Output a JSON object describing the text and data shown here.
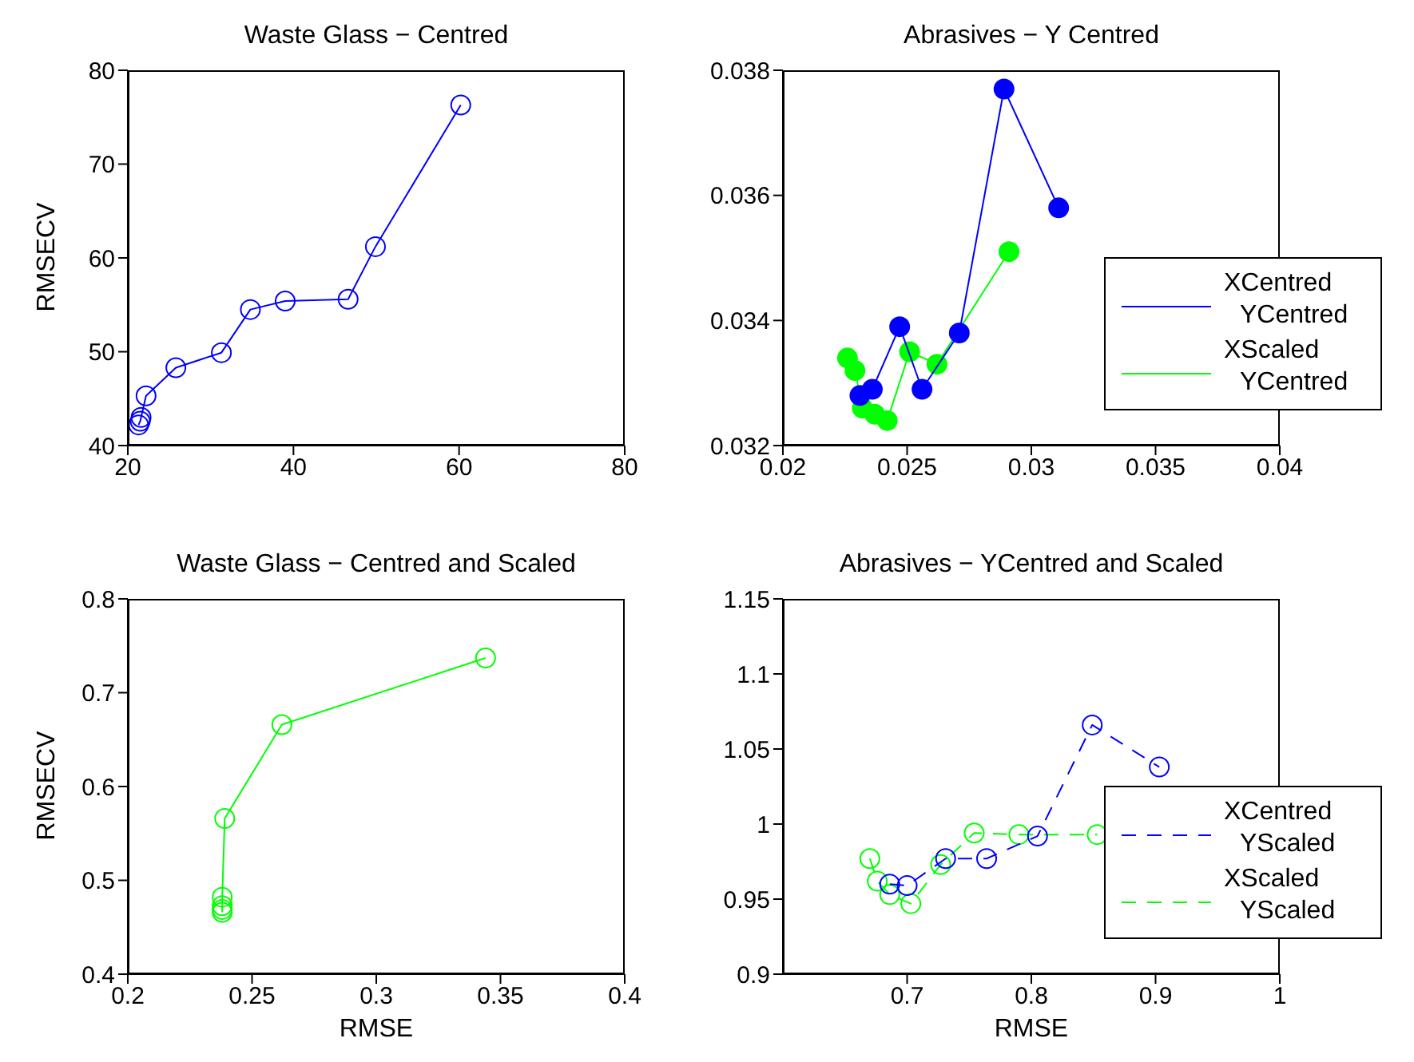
{
  "chart_data": [
    {
      "type": "line",
      "title": "Waste Glass − Centred",
      "ylabel": "RMSECV",
      "marker": "circle",
      "xlim": [
        20,
        80
      ],
      "xticks": [
        20,
        40,
        60,
        80
      ],
      "ylim": [
        40,
        80
      ],
      "yticks": [
        40,
        50,
        60,
        70,
        80
      ],
      "legend": false,
      "series": [
        {
          "color": "#0000ff",
          "x": [
            21.3,
            21.5,
            21.6,
            22.2,
            25.8,
            31.3,
            34.8,
            39,
            46.6,
            49.9,
            60.2
          ],
          "values": [
            42.2,
            42.6,
            43.0,
            45.3,
            48.3,
            49.9,
            54.5,
            55.4,
            55.6,
            61.2,
            76.3
          ]
        }
      ]
    },
    {
      "type": "line",
      "title": "Abrasives − Y Centred",
      "marker": "circle",
      "xlim": [
        0.02,
        0.04
      ],
      "xticks": [
        0.02,
        0.025,
        0.03,
        0.035,
        0.04
      ],
      "ylim": [
        0.032,
        0.038
      ],
      "yticks": [
        0.032,
        0.034,
        0.036,
        0.038
      ],
      "legend": "bottom right",
      "series": [
        {
          "name": "XCentred YCentred",
          "color": "#0000ff",
          "x": [
            0.0231,
            0.0236,
            0.0247,
            0.0256,
            0.0271,
            0.0289,
            0.0311
          ],
          "values": [
            0.0328,
            0.0329,
            0.0339,
            0.0329,
            0.0338,
            0.0377,
            0.0358
          ]
        },
        {
          "name": "XScaled YCentred",
          "color": "#00ff00",
          "x": [
            0.0226,
            0.0229,
            0.0232,
            0.0237,
            0.0242,
            0.0251,
            0.0262,
            0.0291
          ],
          "values": [
            0.0334,
            0.0332,
            0.0326,
            0.0325,
            0.0324,
            0.0335,
            0.0333,
            0.0351
          ]
        }
      ]
    },
    {
      "type": "line",
      "title": "Waste Glass − Centred and Scaled",
      "xlabel": "RMSE",
      "ylabel": "RMSECV",
      "marker": "circle",
      "xlim": [
        0.2,
        0.4
      ],
      "xticks": [
        0.2,
        0.25,
        0.3,
        0.35,
        0.4
      ],
      "ylim": [
        0.4,
        0.8
      ],
      "yticks": [
        0.4,
        0.5,
        0.6,
        0.7,
        0.8
      ],
      "legend": false,
      "series": [
        {
          "color": "#00ff00",
          "x": [
            0.238,
            0.238,
            0.238,
            0.238,
            0.239,
            0.262,
            0.344
          ],
          "values": [
            0.466,
            0.469,
            0.473,
            0.482,
            0.566,
            0.666,
            0.737
          ]
        }
      ]
    },
    {
      "type": "line",
      "title": "Abrasives − YCentred and Scaled",
      "xlabel": "RMSE",
      "marker": "circle",
      "line_style": "dashed",
      "xlim": [
        0.6,
        1
      ],
      "xticks": [
        0.7,
        0.8,
        0.9,
        1
      ],
      "ylim": [
        0.9,
        1.15
      ],
      "yticks": [
        0.9,
        0.95,
        1,
        1.05,
        1.1,
        1.15
      ],
      "legend": "bottom right",
      "series": [
        {
          "name": "XCentred YScaled",
          "color": "#0000ff",
          "x": [
            0.686,
            0.7,
            0.731,
            0.764,
            0.805,
            0.849,
            0.903
          ],
          "values": [
            0.96,
            0.959,
            0.977,
            0.977,
            0.992,
            1.066,
            1.038
          ]
        },
        {
          "name": "XScaled YScaled",
          "color": "#00ff00",
          "x": [
            0.67,
            0.676,
            0.686,
            0.703,
            0.727,
            0.754,
            0.79,
            0.853
          ],
          "values": [
            0.977,
            0.962,
            0.953,
            0.947,
            0.973,
            0.994,
            0.993,
            0.993
          ]
        }
      ]
    }
  ]
}
